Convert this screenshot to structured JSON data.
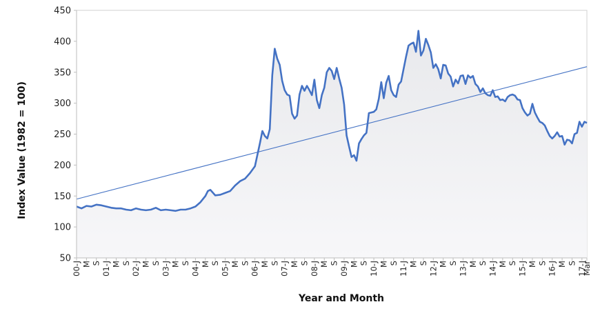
{
  "chart_data": {
    "type": "area",
    "title": "",
    "xlabel": "Year and Month",
    "ylabel": "Index Value (1982 = 100)",
    "ylim": [
      50,
      450
    ],
    "yticks": [
      50,
      100,
      150,
      200,
      250,
      300,
      350,
      400,
      450
    ],
    "grid": false,
    "legend": "none",
    "x_start": "2000-01",
    "x_end": "2017-03",
    "x_tick_labels": [
      "00-J",
      "M",
      "S",
      "01-J",
      "M",
      "S",
      "02-J",
      "M",
      "S",
      "03-J",
      "M",
      "S",
      "04-J",
      "M",
      "S",
      "05-J",
      "M",
      "S",
      "06-J",
      "M",
      "S",
      "07-J",
      "M",
      "S",
      "08-J",
      "M",
      "S",
      "09-J",
      "M",
      "S",
      "10-J",
      "M",
      "S",
      "11-J",
      "M",
      "S",
      "12-J",
      "M",
      "S",
      "13-J",
      "M",
      "S",
      "14-J",
      "M",
      "S",
      "15-J",
      "M",
      "S",
      "16-J",
      "M",
      "S",
      "17-J",
      "Mar"
    ],
    "colors": {
      "line": "#4472c4",
      "trend": "#4472c4",
      "fill_top": "#e8e9ec",
      "fill_bottom": "#ffffff"
    },
    "series": [
      {
        "name": "",
        "points": [
          [
            "2000-01",
            133
          ],
          [
            "2000-03",
            130
          ],
          [
            "2000-05",
            134
          ],
          [
            "2000-07",
            133
          ],
          [
            "2000-09",
            136
          ],
          [
            "2000-11",
            135
          ],
          [
            "2001-01",
            133
          ],
          [
            "2001-03",
            131
          ],
          [
            "2001-05",
            130
          ],
          [
            "2001-07",
            130
          ],
          [
            "2001-09",
            128
          ],
          [
            "2001-11",
            127
          ],
          [
            "2002-01",
            130
          ],
          [
            "2002-03",
            128
          ],
          [
            "2002-05",
            127
          ],
          [
            "2002-07",
            128
          ],
          [
            "2002-09",
            131
          ],
          [
            "2002-11",
            127
          ],
          [
            "2003-01",
            128
          ],
          [
            "2003-03",
            127
          ],
          [
            "2003-05",
            126
          ],
          [
            "2003-07",
            128
          ],
          [
            "2003-09",
            128
          ],
          [
            "2003-11",
            130
          ],
          [
            "2004-01",
            133
          ],
          [
            "2004-03",
            140
          ],
          [
            "2004-05",
            150
          ],
          [
            "2004-06",
            158
          ],
          [
            "2004-07",
            160
          ],
          [
            "2004-09",
            151
          ],
          [
            "2004-11",
            152
          ],
          [
            "2005-01",
            155
          ],
          [
            "2005-03",
            158
          ],
          [
            "2005-05",
            167
          ],
          [
            "2005-07",
            174
          ],
          [
            "2005-09",
            178
          ],
          [
            "2005-11",
            187
          ],
          [
            "2006-01",
            198
          ],
          [
            "2006-03",
            235
          ],
          [
            "2006-04",
            255
          ],
          [
            "2006-05",
            247
          ],
          [
            "2006-06",
            243
          ],
          [
            "2006-07",
            258
          ],
          [
            "2006-08",
            345
          ],
          [
            "2006-09",
            388
          ],
          [
            "2006-10",
            372
          ],
          [
            "2006-11",
            362
          ],
          [
            "2006-12",
            336
          ],
          [
            "2007-01",
            321
          ],
          [
            "2007-02",
            314
          ],
          [
            "2007-03",
            312
          ],
          [
            "2007-04",
            283
          ],
          [
            "2007-05",
            275
          ],
          [
            "2007-06",
            280
          ],
          [
            "2007-07",
            314
          ],
          [
            "2007-08",
            328
          ],
          [
            "2007-09",
            320
          ],
          [
            "2007-10",
            328
          ],
          [
            "2007-11",
            321
          ],
          [
            "2007-12",
            313
          ],
          [
            "2008-01",
            338
          ],
          [
            "2008-02",
            305
          ],
          [
            "2008-03",
            292
          ],
          [
            "2008-04",
            313
          ],
          [
            "2008-05",
            325
          ],
          [
            "2008-06",
            350
          ],
          [
            "2008-07",
            357
          ],
          [
            "2008-08",
            352
          ],
          [
            "2008-09",
            339
          ],
          [
            "2008-10",
            357
          ],
          [
            "2008-11",
            340
          ],
          [
            "2008-12",
            325
          ],
          [
            "2009-01",
            298
          ],
          [
            "2009-02",
            248
          ],
          [
            "2009-03",
            230
          ],
          [
            "2009-04",
            213
          ],
          [
            "2009-05",
            216
          ],
          [
            "2009-06",
            207
          ],
          [
            "2009-07",
            235
          ],
          [
            "2009-08",
            242
          ],
          [
            "2009-09",
            248
          ],
          [
            "2009-10",
            252
          ],
          [
            "2009-11",
            284
          ],
          [
            "2009-12",
            285
          ],
          [
            "2010-01",
            286
          ],
          [
            "2010-02",
            290
          ],
          [
            "2010-03",
            307
          ],
          [
            "2010-04",
            334
          ],
          [
            "2010-05",
            308
          ],
          [
            "2010-06",
            333
          ],
          [
            "2010-07",
            344
          ],
          [
            "2010-08",
            321
          ],
          [
            "2010-09",
            313
          ],
          [
            "2010-10",
            310
          ],
          [
            "2010-11",
            330
          ],
          [
            "2010-12",
            335
          ],
          [
            "2011-01",
            355
          ],
          [
            "2011-02",
            375
          ],
          [
            "2011-03",
            393
          ],
          [
            "2011-04",
            396
          ],
          [
            "2011-05",
            398
          ],
          [
            "2011-06",
            383
          ],
          [
            "2011-07",
            417
          ],
          [
            "2011-08",
            377
          ],
          [
            "2011-09",
            385
          ],
          [
            "2011-10",
            404
          ],
          [
            "2011-11",
            394
          ],
          [
            "2011-12",
            382
          ],
          [
            "2012-01",
            357
          ],
          [
            "2012-02",
            363
          ],
          [
            "2012-03",
            355
          ],
          [
            "2012-04",
            340
          ],
          [
            "2012-05",
            362
          ],
          [
            "2012-06",
            361
          ],
          [
            "2012-07",
            348
          ],
          [
            "2012-08",
            343
          ],
          [
            "2012-09",
            327
          ],
          [
            "2012-10",
            338
          ],
          [
            "2012-11",
            332
          ],
          [
            "2012-12",
            344
          ],
          [
            "2013-01",
            345
          ],
          [
            "2013-02",
            331
          ],
          [
            "2013-03",
            345
          ],
          [
            "2013-04",
            341
          ],
          [
            "2013-05",
            344
          ],
          [
            "2013-06",
            331
          ],
          [
            "2013-07",
            327
          ],
          [
            "2013-08",
            318
          ],
          [
            "2013-09",
            324
          ],
          [
            "2013-10",
            316
          ],
          [
            "2013-11",
            313
          ],
          [
            "2013-12",
            312
          ],
          [
            "2014-01",
            321
          ],
          [
            "2014-02",
            310
          ],
          [
            "2014-03",
            311
          ],
          [
            "2014-04",
            305
          ],
          [
            "2014-05",
            306
          ],
          [
            "2014-06",
            303
          ],
          [
            "2014-07",
            310
          ],
          [
            "2014-08",
            313
          ],
          [
            "2014-09",
            314
          ],
          [
            "2014-10",
            312
          ],
          [
            "2014-11",
            306
          ],
          [
            "2014-12",
            305
          ],
          [
            "2015-01",
            292
          ],
          [
            "2015-02",
            285
          ],
          [
            "2015-03",
            280
          ],
          [
            "2015-04",
            283
          ],
          [
            "2015-05",
            299
          ],
          [
            "2015-06",
            285
          ],
          [
            "2015-07",
            277
          ],
          [
            "2015-08",
            270
          ],
          [
            "2015-09",
            268
          ],
          [
            "2015-10",
            264
          ],
          [
            "2015-11",
            255
          ],
          [
            "2015-12",
            247
          ],
          [
            "2016-01",
            243
          ],
          [
            "2016-02",
            247
          ],
          [
            "2016-03",
            253
          ],
          [
            "2016-04",
            246
          ],
          [
            "2016-05",
            247
          ],
          [
            "2016-06",
            233
          ],
          [
            "2016-07",
            241
          ],
          [
            "2016-08",
            240
          ],
          [
            "2016-09",
            235
          ],
          [
            "2016-10",
            250
          ],
          [
            "2016-11",
            252
          ],
          [
            "2016-12",
            270
          ],
          [
            "2017-01",
            262
          ],
          [
            "2017-02",
            270
          ],
          [
            "2017-03",
            268
          ]
        ]
      }
    ],
    "trendline": {
      "start": [
        "2000-01",
        145
      ],
      "end": [
        "2017-03",
        359
      ]
    }
  }
}
